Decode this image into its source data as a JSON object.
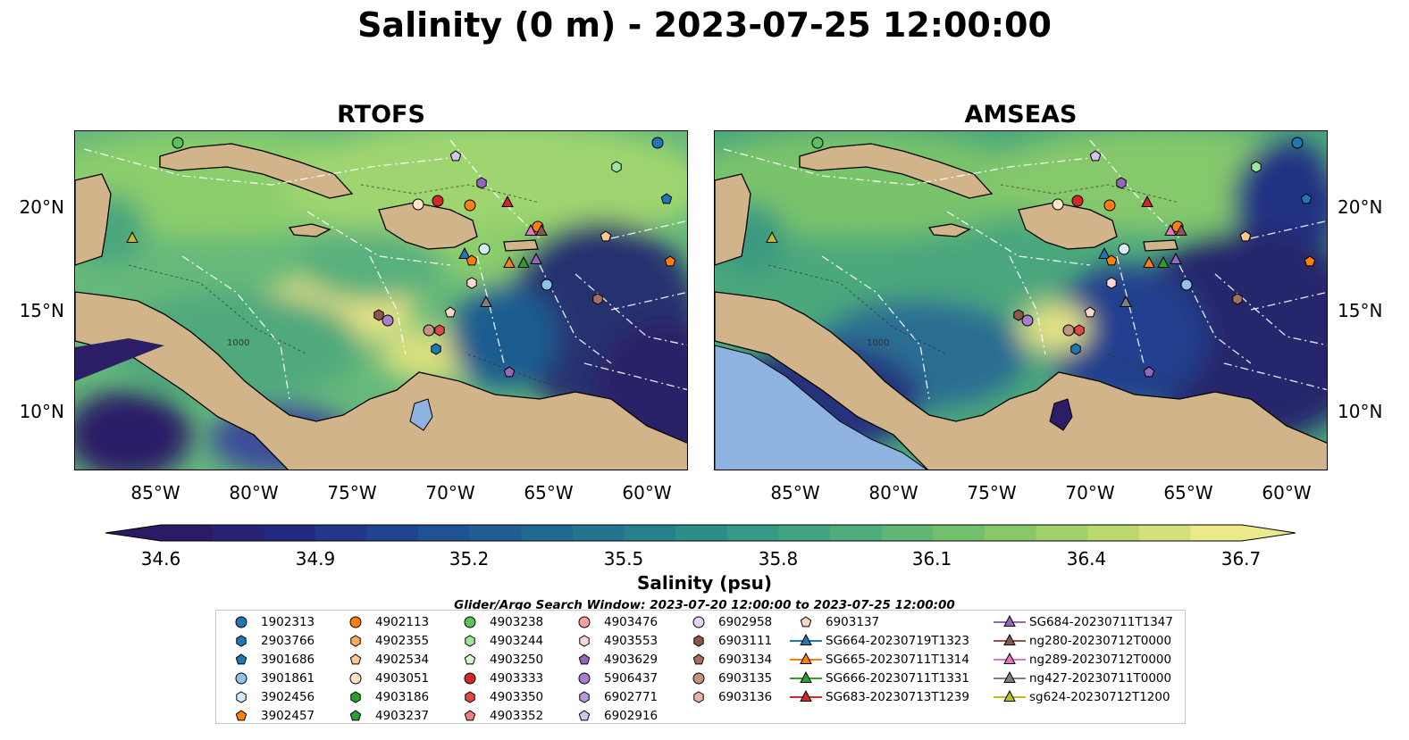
{
  "title": "Salinity (0 m) - 2023-07-25 12:00:00",
  "panels": [
    {
      "title": "RTOFS"
    },
    {
      "title": "AMSEAS"
    }
  ],
  "axes": {
    "lat_labels": [
      "20°N",
      "15°N",
      "10°N"
    ],
    "lon_labels": [
      "85°W",
      "80°W",
      "75°W",
      "70°W",
      "65°W",
      "60°W"
    ],
    "depth_contour_label": "1000"
  },
  "colorbar": {
    "label": "Salinity (psu)",
    "ticks": [
      "34.6",
      "34.9",
      "35.2",
      "35.5",
      "35.8",
      "36.1",
      "36.4",
      "36.7"
    ],
    "min": 34.6,
    "max": 36.7,
    "colormap": [
      "#2b1b65",
      "#232c84",
      "#1f4a93",
      "#1f6593",
      "#26808d",
      "#369a85",
      "#52b079",
      "#7ec46a",
      "#b5d66b",
      "#ece98a"
    ]
  },
  "search_window": "Glider/Argo Search Window: 2023-07-20 12:00:00 to 2023-07-25 12:00:00",
  "legend": {
    "columns": [
      [
        {
          "label": "1902313",
          "marker": "circle",
          "color": "#1f77b4"
        },
        {
          "label": "2903766",
          "marker": "hexagon",
          "color": "#1f77b4"
        },
        {
          "label": "3901686",
          "marker": "pentagon",
          "color": "#1f77b4"
        },
        {
          "label": "3901861",
          "marker": "circle",
          "color": "#8fc3ea"
        },
        {
          "label": "3902456",
          "marker": "hexagon",
          "color": "#d6ebf8"
        },
        {
          "label": "3902457",
          "marker": "pentagon",
          "color": "#ff7f0e"
        }
      ],
      [
        {
          "label": "4902113",
          "marker": "circle",
          "color": "#ff7f0e"
        },
        {
          "label": "4902355",
          "marker": "hexagon",
          "color": "#ffa95c"
        },
        {
          "label": "4902534",
          "marker": "pentagon",
          "color": "#ffc890"
        },
        {
          "label": "4903051",
          "marker": "circle",
          "color": "#ffe6c8"
        },
        {
          "label": "4903186",
          "marker": "hexagon",
          "color": "#2ca02c"
        },
        {
          "label": "4903237",
          "marker": "pentagon",
          "color": "#2ca02c"
        }
      ],
      [
        {
          "label": "4903238",
          "marker": "circle",
          "color": "#5cc05c"
        },
        {
          "label": "4903244",
          "marker": "hexagon",
          "color": "#9ee39e"
        },
        {
          "label": "4903250",
          "marker": "pentagon",
          "color": "#d4f5d0"
        },
        {
          "label": "4903333",
          "marker": "circle",
          "color": "#d62728"
        },
        {
          "label": "4903350",
          "marker": "hexagon",
          "color": "#e04848"
        },
        {
          "label": "4903352",
          "marker": "pentagon",
          "color": "#f08080"
        }
      ],
      [
        {
          "label": "4903476",
          "marker": "circle",
          "color": "#f5a0a0"
        },
        {
          "label": "4903553",
          "marker": "hexagon",
          "color": "#fcd6d6"
        },
        {
          "label": "4903629",
          "marker": "pentagon",
          "color": "#9467bd"
        },
        {
          "label": "5906437",
          "marker": "circle",
          "color": "#a77fd0"
        },
        {
          "label": "6902771",
          "marker": "hexagon",
          "color": "#b999dd"
        },
        {
          "label": "6902916",
          "marker": "pentagon",
          "color": "#d6c2ee"
        }
      ],
      [
        {
          "label": "6902958",
          "marker": "circle",
          "color": "#e4d4f5"
        },
        {
          "label": "6903111",
          "marker": "hexagon",
          "color": "#8c564b"
        },
        {
          "label": "6903134",
          "marker": "pentagon",
          "color": "#a3705f"
        },
        {
          "label": "6903135",
          "marker": "circle",
          "color": "#c49283"
        },
        {
          "label": "6903136",
          "marker": "hexagon",
          "color": "#e3b6a8"
        }
      ],
      [
        {
          "label": "6903137",
          "marker": "pentagon",
          "color": "#f8d7c9"
        },
        {
          "label": "SG664-20230719T1323",
          "marker": "triangle-line",
          "color": "#1f77b4"
        },
        {
          "label": "SG665-20230711T1314",
          "marker": "triangle-line",
          "color": "#ff7f0e"
        },
        {
          "label": "SG666-20230711T1331",
          "marker": "triangle-line",
          "color": "#2ca02c"
        },
        {
          "label": "SG683-20230713T1239",
          "marker": "triangle-line",
          "color": "#d62728"
        }
      ],
      [
        {
          "label": "SG684-20230711T1347",
          "marker": "triangle-line",
          "color": "#9467bd"
        },
        {
          "label": "ng280-20230712T0000",
          "marker": "triangle-line",
          "color": "#8c564b"
        },
        {
          "label": "ng289-20230712T0000",
          "marker": "triangle-line",
          "color": "#e377c2"
        },
        {
          "label": "ng427-20230711T0000",
          "marker": "triangle-line",
          "color": "#7f7f7f"
        },
        {
          "label": "sg624-20230712T1200",
          "marker": "triangle-line",
          "color": "#bcbd22"
        }
      ]
    ]
  }
}
